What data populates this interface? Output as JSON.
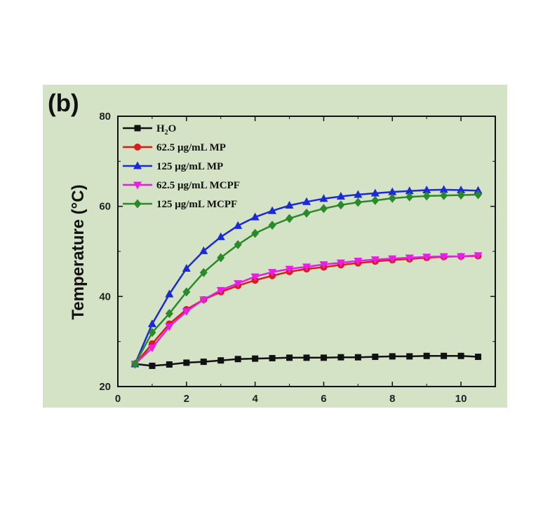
{
  "figure": {
    "panel_label": "(b)"
  },
  "chart_data": {
    "type": "line",
    "title": "",
    "xlabel": "",
    "ylabel": "Temperature (°C)",
    "xlim": [
      0,
      11
    ],
    "ylim": [
      20,
      80
    ],
    "xticks": [
      0,
      2,
      4,
      6,
      8,
      10
    ],
    "yticks": [
      20,
      40,
      60,
      80
    ],
    "legend_position": "top-left",
    "x": [
      0.5,
      1.0,
      1.5,
      2.0,
      2.5,
      3.0,
      3.5,
      4.0,
      4.5,
      5.0,
      5.5,
      6.0,
      6.5,
      7.0,
      7.5,
      8.0,
      8.5,
      9.0,
      9.5,
      10.0,
      10.5
    ],
    "series": [
      {
        "name": "H2O",
        "legend_main": "H",
        "legend_sub": "2",
        "legend_tail": "O",
        "color": "#111111",
        "marker": "square",
        "values": [
          25.0,
          24.6,
          24.9,
          25.3,
          25.5,
          25.8,
          26.1,
          26.2,
          26.3,
          26.4,
          26.4,
          26.4,
          26.5,
          26.5,
          26.6,
          26.7,
          26.7,
          26.8,
          26.8,
          26.8,
          26.6
        ]
      },
      {
        "name": "62.5 μg/mL MP",
        "color": "#e01919",
        "marker": "circle",
        "values": [
          25.0,
          29.5,
          33.9,
          37.1,
          39.3,
          41.0,
          42.4,
          43.6,
          44.6,
          45.5,
          46.1,
          46.5,
          47.0,
          47.4,
          47.8,
          48.1,
          48.3,
          48.6,
          48.8,
          48.9,
          49.0
        ]
      },
      {
        "name": "125 μg/mL MP",
        "color": "#1a2ad6",
        "marker": "triangle-up",
        "values": [
          25.0,
          33.9,
          40.5,
          46.2,
          50.1,
          53.2,
          55.7,
          57.6,
          59.0,
          60.2,
          61.0,
          61.7,
          62.2,
          62.6,
          62.9,
          63.2,
          63.4,
          63.6,
          63.7,
          63.6,
          63.5
        ]
      },
      {
        "name": "62.5 μg/mL MCPF",
        "color": "#e61ee6",
        "marker": "triangle-down",
        "values": [
          25.0,
          28.6,
          33.3,
          36.7,
          39.3,
          41.4,
          42.9,
          44.4,
          45.4,
          46.1,
          46.6,
          47.1,
          47.5,
          47.9,
          48.2,
          48.4,
          48.6,
          48.8,
          48.9,
          48.9,
          49.1
        ]
      },
      {
        "name": "125 μg/mL MCPF",
        "color": "#2a8a2a",
        "marker": "diamond",
        "values": [
          25.0,
          32.0,
          36.2,
          41.0,
          45.3,
          48.6,
          51.5,
          54.0,
          55.8,
          57.3,
          58.5,
          59.5,
          60.3,
          60.9,
          61.3,
          61.8,
          62.1,
          62.3,
          62.4,
          62.5,
          62.6
        ]
      }
    ]
  }
}
